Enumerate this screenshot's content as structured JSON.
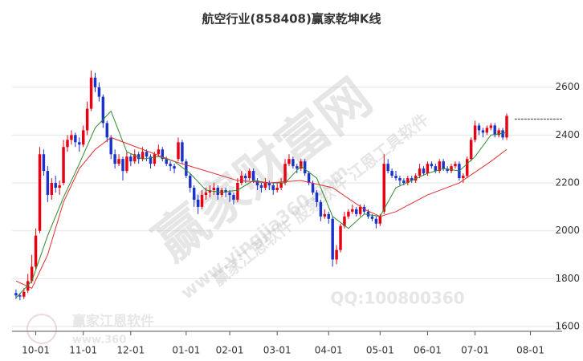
{
  "chart_data": {
    "type": "candlestick",
    "title": "航空行业(858408)赢家乾坤K线",
    "xlim": [
      -1,
      138
    ],
    "ylim": [
      1580,
      2780
    ],
    "xticks": [
      {
        "value": 5,
        "label": "10-01"
      },
      {
        "value": 17,
        "label": "11-01"
      },
      {
        "value": 29,
        "label": "12-01"
      },
      {
        "value": 43,
        "label": "01-01"
      },
      {
        "value": 54,
        "label": "02-01"
      },
      {
        "value": 66,
        "label": "03-01"
      },
      {
        "value": 79,
        "label": "04-01"
      },
      {
        "value": 92,
        "label": "05-01"
      },
      {
        "value": 104,
        "label": "06-01"
      },
      {
        "value": 116,
        "label": "07-01"
      },
      {
        "value": 130,
        "label": "08-01"
      }
    ],
    "yticks": [
      1600,
      1800,
      2000,
      2200,
      2400,
      2600
    ],
    "grid": true,
    "up_color": "#e60012",
    "down_color": "#1a33cc",
    "ohlc": [
      [
        1740,
        1755,
        1715,
        1730
      ],
      [
        1730,
        1740,
        1710,
        1725
      ],
      [
        1725,
        1760,
        1715,
        1745
      ],
      [
        1750,
        1820,
        1740,
        1790
      ],
      [
        1790,
        1900,
        1780,
        1850
      ],
      [
        1850,
        2010,
        1840,
        1980
      ],
      [
        2000,
        2350,
        1990,
        2320
      ],
      [
        2320,
        2340,
        2230,
        2250
      ],
      [
        2250,
        2270,
        2120,
        2150
      ],
      [
        2150,
        2220,
        2130,
        2200
      ],
      [
        2200,
        2230,
        2160,
        2180
      ],
      [
        2180,
        2210,
        2150,
        2190
      ],
      [
        2200,
        2380,
        2190,
        2350
      ],
      [
        2350,
        2400,
        2330,
        2380
      ],
      [
        2380,
        2420,
        2360,
        2400
      ],
      [
        2400,
        2410,
        2350,
        2370
      ],
      [
        2370,
        2390,
        2330,
        2360
      ],
      [
        2360,
        2440,
        2350,
        2420
      ],
      [
        2420,
        2540,
        2400,
        2510
      ],
      [
        2510,
        2670,
        2500,
        2640
      ],
      [
        2640,
        2660,
        2580,
        2600
      ],
      [
        2600,
        2620,
        2540,
        2560
      ],
      [
        2560,
        2570,
        2430,
        2450
      ],
      [
        2450,
        2460,
        2370,
        2390
      ],
      [
        2390,
        2400,
        2300,
        2320
      ],
      [
        2320,
        2340,
        2260,
        2280
      ],
      [
        2280,
        2320,
        2270,
        2300
      ],
      [
        2300,
        2310,
        2210,
        2250
      ],
      [
        2250,
        2330,
        2240,
        2310
      ],
      [
        2310,
        2320,
        2270,
        2290
      ],
      [
        2290,
        2340,
        2280,
        2320
      ],
      [
        2320,
        2330,
        2280,
        2300
      ],
      [
        2300,
        2350,
        2290,
        2330
      ],
      [
        2330,
        2340,
        2290,
        2310
      ],
      [
        2310,
        2320,
        2260,
        2280
      ],
      [
        2280,
        2330,
        2270,
        2320
      ],
      [
        2320,
        2360,
        2310,
        2340
      ],
      [
        2340,
        2350,
        2290,
        2300
      ],
      [
        2300,
        2310,
        2270,
        2280
      ],
      [
        2280,
        2290,
        2250,
        2270
      ],
      [
        2270,
        2280,
        2240,
        2260
      ],
      [
        2300,
        2390,
        2290,
        2370
      ],
      [
        2370,
        2380,
        2280,
        2290
      ],
      [
        2290,
        2300,
        2220,
        2230
      ],
      [
        2230,
        2240,
        2160,
        2180
      ],
      [
        2180,
        2190,
        2100,
        2130
      ],
      [
        2130,
        2150,
        2070,
        2100
      ],
      [
        2100,
        2170,
        2090,
        2150
      ],
      [
        2150,
        2180,
        2130,
        2160
      ],
      [
        2160,
        2190,
        2140,
        2170
      ],
      [
        2170,
        2200,
        2150,
        2180
      ],
      [
        2180,
        2190,
        2130,
        2150
      ],
      [
        2150,
        2180,
        2140,
        2170
      ],
      [
        2170,
        2180,
        2140,
        2160
      ],
      [
        2160,
        2170,
        2120,
        2150
      ],
      [
        2150,
        2160,
        2110,
        2130
      ],
      [
        2130,
        2220,
        2120,
        2200
      ],
      [
        2200,
        2250,
        2190,
        2230
      ],
      [
        2230,
        2240,
        2200,
        2220
      ],
      [
        2220,
        2260,
        2210,
        2250
      ],
      [
        2250,
        2260,
        2200,
        2210
      ],
      [
        2210,
        2220,
        2170,
        2190
      ],
      [
        2190,
        2200,
        2160,
        2180
      ],
      [
        2180,
        2220,
        2170,
        2200
      ],
      [
        2200,
        2210,
        2170,
        2190
      ],
      [
        2190,
        2200,
        2150,
        2170
      ],
      [
        2170,
        2200,
        2160,
        2180
      ],
      [
        2180,
        2220,
        2170,
        2200
      ],
      [
        2200,
        2300,
        2190,
        2280
      ],
      [
        2280,
        2320,
        2270,
        2300
      ],
      [
        2300,
        2310,
        2260,
        2270
      ],
      [
        2270,
        2280,
        2240,
        2260
      ],
      [
        2260,
        2300,
        2250,
        2290
      ],
      [
        2290,
        2300,
        2230,
        2240
      ],
      [
        2240,
        2250,
        2190,
        2200
      ],
      [
        2200,
        2210,
        2150,
        2160
      ],
      [
        2160,
        2170,
        2100,
        2120
      ],
      [
        2120,
        2130,
        2040,
        2060
      ],
      [
        2060,
        2090,
        2050,
        2070
      ],
      [
        2070,
        2080,
        2030,
        2050
      ],
      [
        2050,
        2060,
        1850,
        1880
      ],
      [
        1880,
        1940,
        1860,
        1920
      ],
      [
        1920,
        2030,
        1910,
        2020
      ],
      [
        2020,
        2080,
        2010,
        2060
      ],
      [
        2060,
        2090,
        2050,
        2080
      ],
      [
        2080,
        2110,
        2070,
        2090
      ],
      [
        2090,
        2100,
        2060,
        2070
      ],
      [
        2070,
        2110,
        2060,
        2100
      ],
      [
        2100,
        2110,
        2070,
        2080
      ],
      [
        2080,
        2090,
        2050,
        2060
      ],
      [
        2060,
        2070,
        2040,
        2050
      ],
      [
        2050,
        2060,
        2010,
        2030
      ],
      [
        2030,
        2070,
        2020,
        2060
      ],
      [
        2080,
        2320,
        2070,
        2280
      ],
      [
        2280,
        2300,
        2240,
        2250
      ],
      [
        2250,
        2260,
        2220,
        2230
      ],
      [
        2230,
        2250,
        2210,
        2220
      ],
      [
        2220,
        2230,
        2190,
        2210
      ],
      [
        2210,
        2220,
        2190,
        2200
      ],
      [
        2200,
        2230,
        2190,
        2220
      ],
      [
        2220,
        2230,
        2200,
        2210
      ],
      [
        2210,
        2240,
        2200,
        2230
      ],
      [
        2230,
        2280,
        2220,
        2260
      ],
      [
        2260,
        2270,
        2230,
        2240
      ],
      [
        2240,
        2290,
        2230,
        2280
      ],
      [
        2280,
        2290,
        2260,
        2270
      ],
      [
        2270,
        2280,
        2240,
        2250
      ],
      [
        2250,
        2300,
        2240,
        2290
      ],
      [
        2290,
        2300,
        2250,
        2260
      ],
      [
        2260,
        2270,
        2240,
        2250
      ],
      [
        2250,
        2280,
        2240,
        2270
      ],
      [
        2270,
        2290,
        2260,
        2280
      ],
      [
        2280,
        2290,
        2210,
        2220
      ],
      [
        2220,
        2240,
        2200,
        2230
      ],
      [
        2230,
        2310,
        2220,
        2300
      ],
      [
        2300,
        2390,
        2290,
        2380
      ],
      [
        2380,
        2460,
        2370,
        2440
      ],
      [
        2440,
        2450,
        2400,
        2420
      ],
      [
        2420,
        2430,
        2390,
        2410
      ],
      [
        2410,
        2440,
        2400,
        2430
      ],
      [
        2430,
        2450,
        2420,
        2440
      ],
      [
        2440,
        2450,
        2390,
        2400
      ],
      [
        2400,
        2430,
        2390,
        2420
      ],
      [
        2420,
        2430,
        2380,
        2390
      ],
      [
        2390,
        2490,
        2380,
        2480
      ]
    ],
    "lines": [
      {
        "color": "#2e8b2e",
        "x": [
          0,
          4,
          8,
          12,
          16,
          20,
          24,
          28,
          32,
          36,
          40,
          44,
          48,
          52,
          56,
          60,
          64,
          68,
          72,
          76,
          80,
          84,
          88,
          92,
          96,
          100,
          104,
          108,
          112,
          116,
          120,
          124
        ],
        "values": [
          1720,
          1790,
          1980,
          2140,
          2280,
          2430,
          2500,
          2330,
          2300,
          2310,
          2290,
          2240,
          2170,
          2160,
          2170,
          2210,
          2200,
          2200,
          2270,
          2220,
          2060,
          2010,
          2070,
          2060,
          2180,
          2210,
          2240,
          2260,
          2250,
          2310,
          2400,
          2410
        ]
      },
      {
        "color": "#e03030",
        "x": [
          0,
          4,
          8,
          12,
          16,
          20,
          24,
          32,
          40,
          48,
          56,
          64,
          72,
          80,
          88,
          92,
          96,
          104,
          112,
          120,
          124
        ],
        "values": [
          1790,
          1760,
          1900,
          2120,
          2260,
          2340,
          2390,
          2340,
          2290,
          2250,
          2210,
          2200,
          2210,
          2180,
          2090,
          2060,
          2080,
          2150,
          2200,
          2290,
          2340
        ]
      }
    ],
    "price_line": 2467,
    "watermarks": [
      "赢家财富网",
      "赢家江恩软件 股票软件 江恩工具软件",
      "www.yingjia360.com",
      "QQ:100800360",
      "赢家江恩软件",
      "www.360"
    ]
  }
}
